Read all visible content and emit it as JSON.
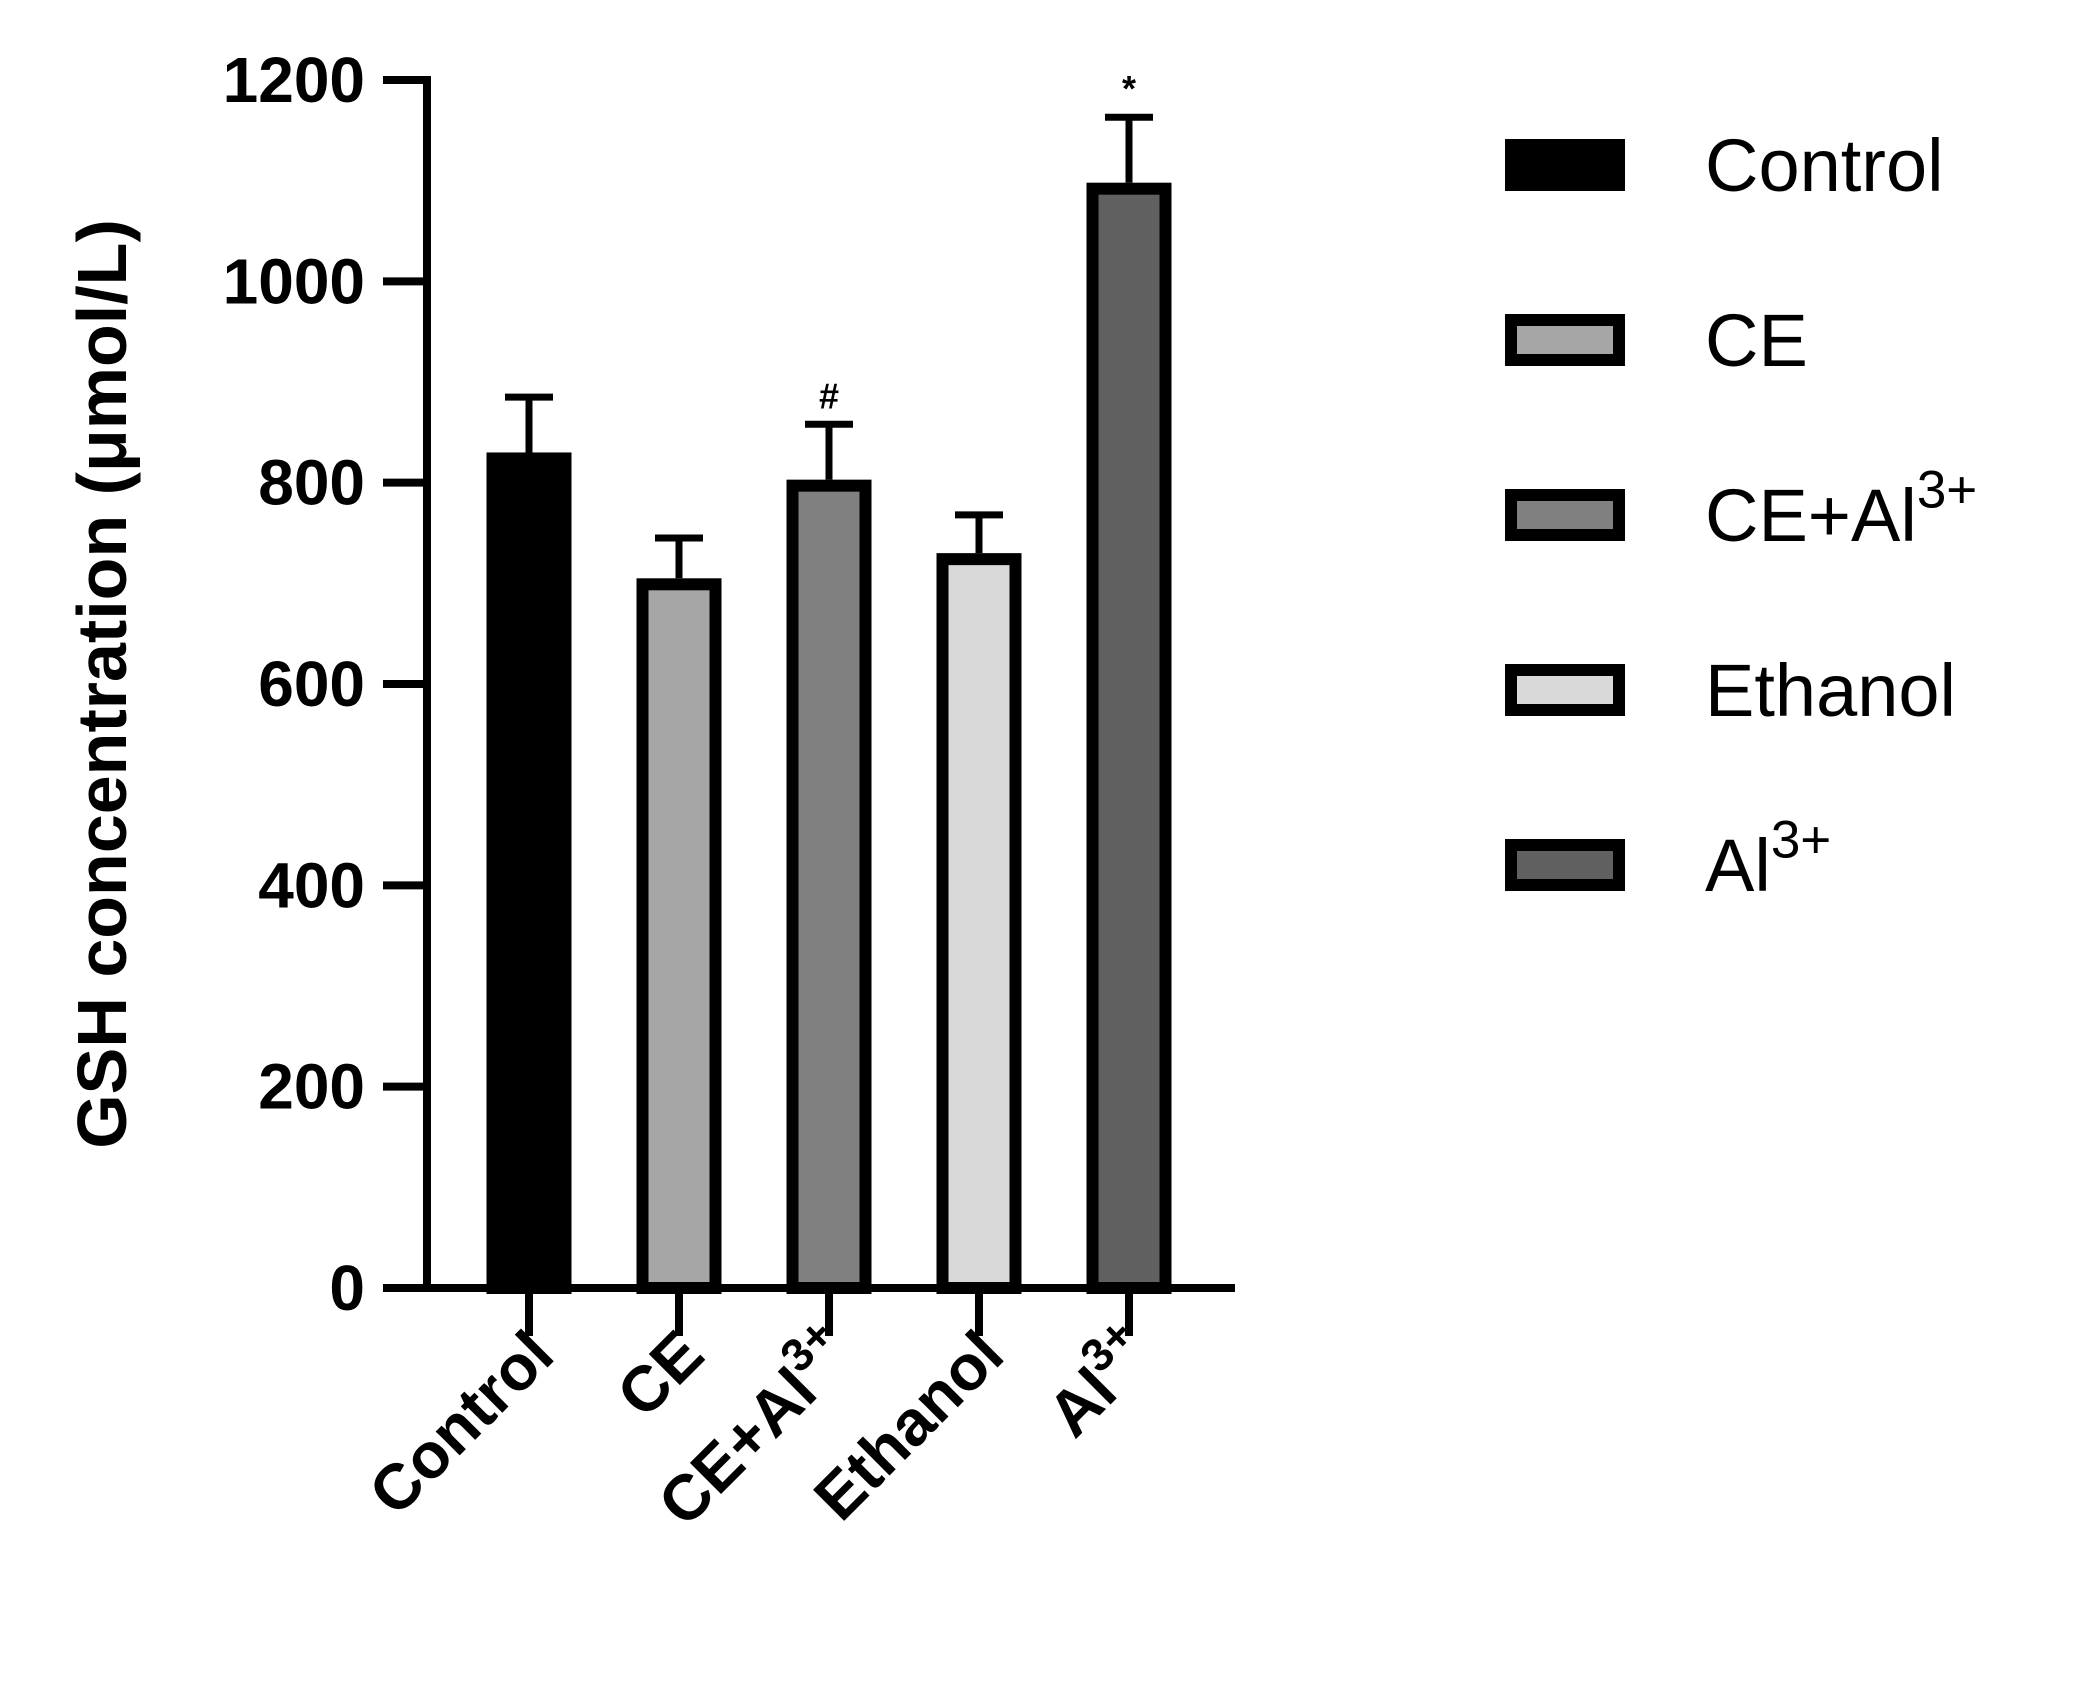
{
  "chart_data": {
    "type": "bar",
    "ylabel": "GSH concentration (μmol/L)",
    "ylim": [
      0,
      1200
    ],
    "yticks": [
      0,
      200,
      400,
      600,
      800,
      1000,
      1200
    ],
    "categories": [
      {
        "label": "Control",
        "sup": ""
      },
      {
        "label": "CE",
        "sup": ""
      },
      {
        "label": "CE+Al",
        "sup": "3+"
      },
      {
        "label": "Ethanol",
        "sup": ""
      },
      {
        "label": "Al",
        "sup": "3+"
      }
    ],
    "values": [
      830,
      705,
      803,
      730,
      1098
    ],
    "errors": [
      55,
      40,
      55,
      38,
      65
    ],
    "significance": [
      "",
      "",
      "#",
      "",
      "*"
    ],
    "colors": [
      "#000000",
      "#a6a6a6",
      "#808080",
      "#d9d9d9",
      "#606060"
    ],
    "legend": {
      "position": "right",
      "entries": [
        {
          "label": "Control",
          "sup": ""
        },
        {
          "label": "CE",
          "sup": ""
        },
        {
          "label": "CE+Al",
          "sup": "3+"
        },
        {
          "label": "Ethanol",
          "sup": ""
        },
        {
          "label": "Al",
          "sup": "3+"
        }
      ]
    },
    "grid": false
  }
}
